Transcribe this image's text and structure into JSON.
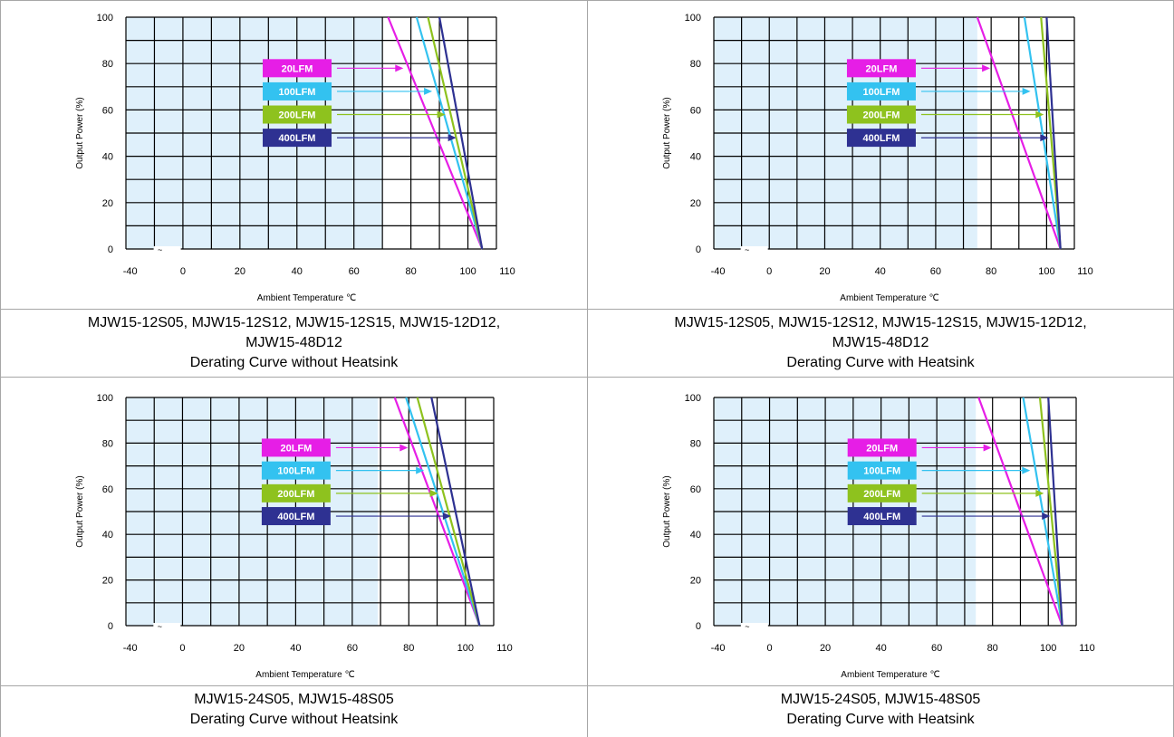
{
  "charts": [
    {
      "caption_lines": [
        "MJW15-12S05, MJW15-12S12, MJW15-12S15, MJW15-12D12,",
        "MJW15-48D12",
        "Derating Curve without Heatsink"
      ],
      "chart_data": {
        "type": "line",
        "xlabel": "Ambient Temperature  ℃",
        "ylabel": "Output Power  (%)",
        "x_ticks": [
          "-40",
          "0",
          "20",
          "40",
          "60",
          "80",
          "100",
          "110"
        ],
        "y_ticks": [
          "0",
          "20",
          "40",
          "60",
          "80",
          "100"
        ],
        "axis_break": "~",
        "grid": true,
        "safe_area_until_c": 70,
        "series": [
          {
            "name": "20LFM",
            "color": "#e61ee6",
            "x": [
              72,
              105
            ],
            "y": [
              100,
              0
            ]
          },
          {
            "name": "100LFM",
            "color": "#33c2f0",
            "x": [
              82,
              105
            ],
            "y": [
              100,
              0
            ]
          },
          {
            "name": "200LFM",
            "color": "#8ec21e",
            "x": [
              86,
              105
            ],
            "y": [
              100,
              0
            ]
          },
          {
            "name": "400LFM",
            "color": "#2e3192",
            "x": [
              90,
              105
            ],
            "y": [
              100,
              0
            ]
          }
        ],
        "arrow_target_y": [
          78,
          68,
          58,
          48
        ]
      }
    },
    {
      "caption_lines": [
        "MJW15-12S05, MJW15-12S12, MJW15-12S15, MJW15-12D12,",
        "MJW15-48D12",
        "Derating Curve with Heatsink"
      ],
      "chart_data": {
        "type": "line",
        "xlabel": "Ambient Temperature  ℃",
        "ylabel": "Output Power  (%)",
        "x_ticks": [
          "-40",
          "0",
          "20",
          "40",
          "60",
          "80",
          "100",
          "110"
        ],
        "y_ticks": [
          "0",
          "20",
          "40",
          "60",
          "80",
          "100"
        ],
        "axis_break": "~",
        "grid": true,
        "safe_area_until_c": 75,
        "series": [
          {
            "name": "20LFM",
            "color": "#e61ee6",
            "x": [
              75,
              105
            ],
            "y": [
              100,
              0
            ]
          },
          {
            "name": "100LFM",
            "color": "#33c2f0",
            "x": [
              92,
              105
            ],
            "y": [
              100,
              0
            ]
          },
          {
            "name": "200LFM",
            "color": "#8ec21e",
            "x": [
              98,
              105
            ],
            "y": [
              100,
              0
            ]
          },
          {
            "name": "400LFM",
            "color": "#2e3192",
            "x": [
              100,
              105
            ],
            "y": [
              100,
              0
            ]
          }
        ],
        "arrow_target_y": [
          78,
          68,
          58,
          48
        ]
      }
    },
    {
      "caption_lines": [
        "MJW15-24S05, MJW15-48S05",
        "Derating Curve without Heatsink"
      ],
      "chart_data": {
        "type": "line",
        "xlabel": "Ambient Temperature  ℃",
        "ylabel": "Output Power  (%)",
        "x_ticks": [
          "-40",
          "0",
          "20",
          "40",
          "60",
          "80",
          "100",
          "110"
        ],
        "y_ticks": [
          "0",
          "20",
          "40",
          "60",
          "80",
          "100"
        ],
        "axis_break": "~",
        "grid": true,
        "safe_area_until_c": 69,
        "series": [
          {
            "name": "20LFM",
            "color": "#e61ee6",
            "x": [
              75,
              105
            ],
            "y": [
              100,
              0
            ]
          },
          {
            "name": "100LFM",
            "color": "#33c2f0",
            "x": [
              79,
              105
            ],
            "y": [
              100,
              0
            ]
          },
          {
            "name": "200LFM",
            "color": "#8ec21e",
            "x": [
              83,
              105
            ],
            "y": [
              100,
              0
            ]
          },
          {
            "name": "400LFM",
            "color": "#2e3192",
            "x": [
              88,
              105
            ],
            "y": [
              100,
              0
            ]
          }
        ],
        "arrow_target_y": [
          78,
          68,
          58,
          48
        ]
      }
    },
    {
      "caption_lines": [
        "MJW15-24S05, MJW15-48S05",
        "Derating Curve with Heatsink"
      ],
      "chart_data": {
        "type": "line",
        "xlabel": "Ambient Temperature  ℃",
        "ylabel": "Output Power  (%)",
        "x_ticks": [
          "-40",
          "0",
          "20",
          "40",
          "60",
          "80",
          "100",
          "110"
        ],
        "y_ticks": [
          "0",
          "20",
          "40",
          "60",
          "80",
          "100"
        ],
        "axis_break": "~",
        "grid": true,
        "safe_area_until_c": 74,
        "series": [
          {
            "name": "20LFM",
            "color": "#e61ee6",
            "x": [
              75,
              105
            ],
            "y": [
              100,
              0
            ]
          },
          {
            "name": "100LFM",
            "color": "#33c2f0",
            "x": [
              91,
              105
            ],
            "y": [
              100,
              0
            ]
          },
          {
            "name": "200LFM",
            "color": "#8ec21e",
            "x": [
              97,
              105
            ],
            "y": [
              100,
              0
            ]
          },
          {
            "name": "400LFM",
            "color": "#2e3192",
            "x": [
              100,
              105
            ],
            "y": [
              100,
              0
            ]
          }
        ],
        "arrow_target_y": [
          78,
          68,
          58,
          48
        ]
      }
    }
  ]
}
